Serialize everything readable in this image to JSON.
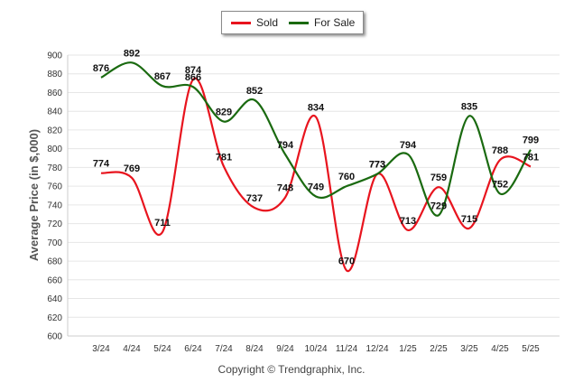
{
  "chart_data": {
    "type": "line",
    "categories": [
      "3/24",
      "4/24",
      "5/24",
      "6/24",
      "7/24",
      "8/24",
      "9/24",
      "10/24",
      "11/24",
      "12/24",
      "1/25",
      "2/25",
      "3/25",
      "4/25",
      "5/25"
    ],
    "series": [
      {
        "name": "Sold",
        "color": "#e8141e",
        "values": [
          774,
          769,
          711,
          874,
          781,
          737,
          748,
          834,
          670,
          773,
          713,
          759,
          715,
          788,
          781
        ]
      },
      {
        "name": "For Sale",
        "color": "#1a6a10",
        "values": [
          876,
          892,
          867,
          866,
          829,
          852,
          794,
          749,
          760,
          773,
          794,
          729,
          835,
          752,
          799
        ]
      }
    ],
    "ylabel": "Average Price (in $,000)",
    "ylim": [
      600,
      900
    ],
    "yticks": [
      600,
      620,
      640,
      660,
      680,
      700,
      720,
      740,
      760,
      780,
      800,
      820,
      840,
      860,
      880,
      900
    ],
    "grid": true,
    "legend_position": "top-center",
    "footer": "Copyright © Trendgraphix, Inc."
  }
}
